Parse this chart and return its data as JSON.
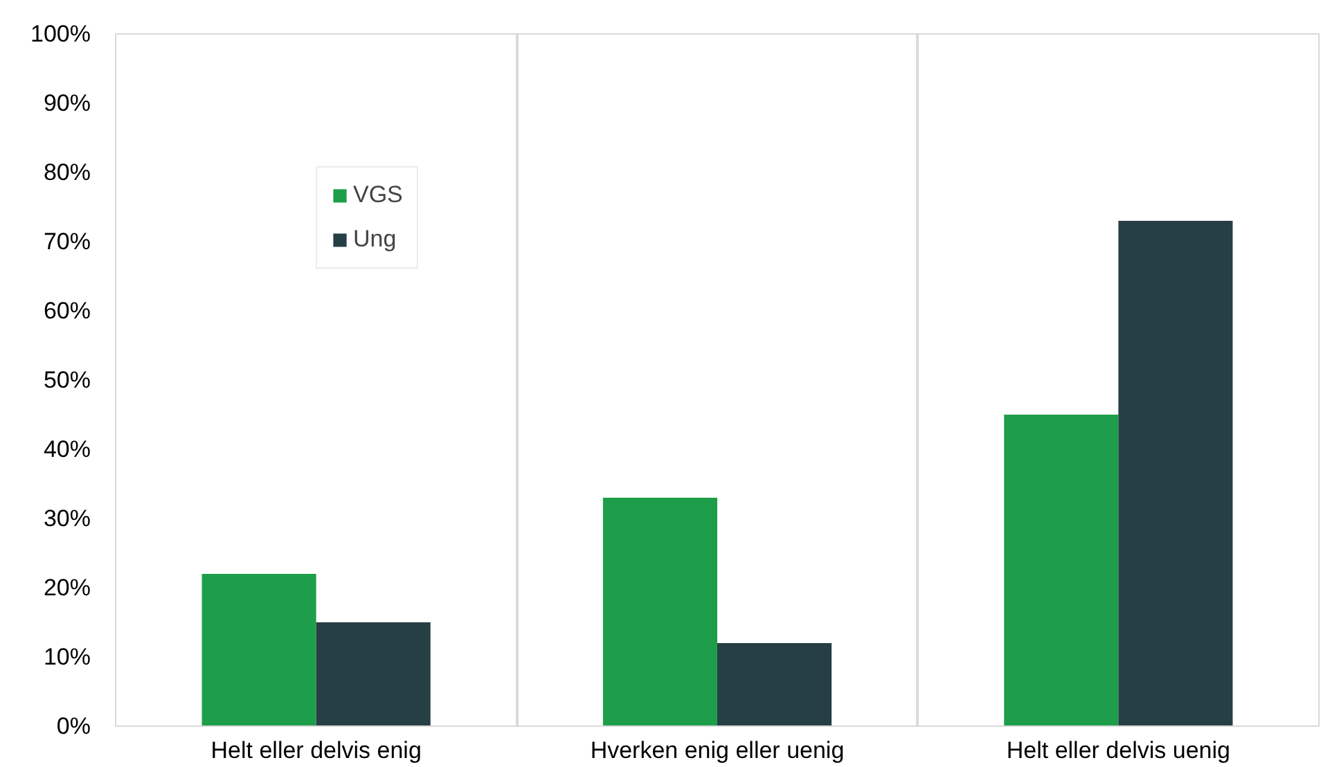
{
  "chart_data": {
    "type": "bar",
    "categories": [
      "Helt eller delvis enig",
      "Hverken enig eller uenig",
      "Helt eller delvis uenig"
    ],
    "series": [
      {
        "name": "VGS",
        "color": "#1e9e4a",
        "values": [
          22,
          33,
          45
        ]
      },
      {
        "name": "Ung",
        "color": "#263f45",
        "values": [
          15,
          12,
          73
        ]
      }
    ],
    "ylim": [
      0,
      100
    ],
    "yticks": [
      {
        "value": 0,
        "label": "0%"
      },
      {
        "value": 10,
        "label": "10%"
      },
      {
        "value": 20,
        "label": "20%"
      },
      {
        "value": 30,
        "label": "30%"
      },
      {
        "value": 40,
        "label": "40%"
      },
      {
        "value": 50,
        "label": "50%"
      },
      {
        "value": 60,
        "label": "60%"
      },
      {
        "value": 70,
        "label": "70%"
      },
      {
        "value": 80,
        "label": "80%"
      },
      {
        "value": 90,
        "label": "90%"
      },
      {
        "value": 100,
        "label": "100%"
      }
    ],
    "grid": "x",
    "legend": "top left"
  }
}
